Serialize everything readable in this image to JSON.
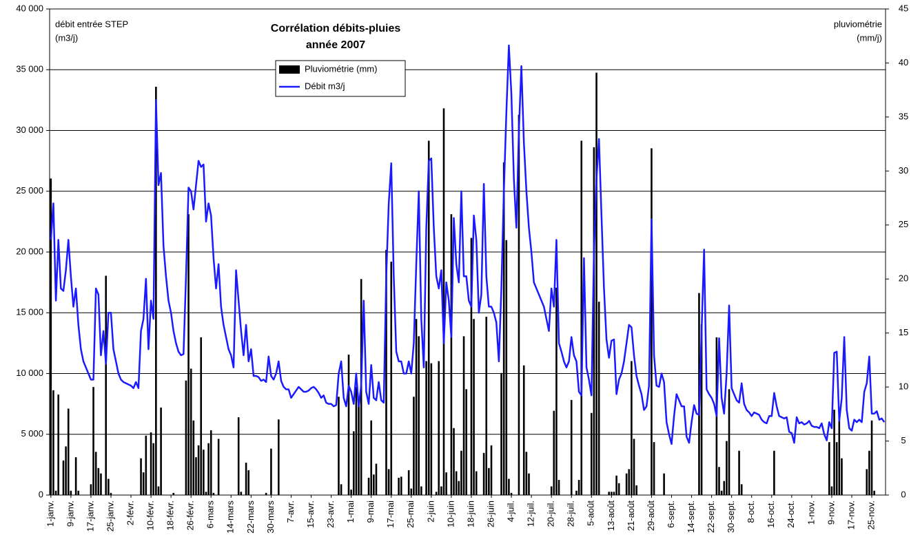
{
  "chart_data": {
    "type": "bar_line",
    "title": [
      "Corrélation débits-pluies",
      "année 2007"
    ],
    "ylabel": [
      "débit entrée STEP",
      "(m3/j)"
    ],
    "y2label": [
      "pluviométrie",
      "(mm/j)"
    ],
    "categories": [
      "1-janv.",
      null,
      null,
      null,
      null,
      null,
      null,
      null,
      "9-janv.",
      null,
      null,
      null,
      null,
      null,
      null,
      null,
      "17-janv.",
      null,
      null,
      null,
      null,
      null,
      null,
      null,
      "25-janv.",
      null,
      null,
      null,
      null,
      null,
      null,
      null,
      "2-févr.",
      null,
      null,
      null,
      null,
      null,
      null,
      null,
      "10-févr.",
      null,
      null,
      null,
      null,
      null,
      null,
      null,
      "18-févr.",
      null,
      null,
      null,
      null,
      null,
      null,
      null,
      "26-févr.",
      null,
      null,
      null,
      null,
      null,
      null,
      null,
      "6-mars",
      null,
      null,
      null,
      null,
      null,
      null,
      null,
      "14-mars",
      null,
      null,
      null,
      null,
      null,
      null,
      null,
      "22-mars",
      null,
      null,
      null,
      null,
      null,
      null,
      null,
      "30-mars",
      null,
      null,
      null,
      null,
      null,
      null,
      null,
      "7-avr.",
      null,
      null,
      null,
      null,
      null,
      null,
      null,
      "15-avr.",
      null,
      null,
      null,
      null,
      null,
      null,
      null,
      "23-avr.",
      null,
      null,
      null,
      null,
      null,
      null,
      null,
      "1-mai",
      null,
      null,
      null,
      null,
      null,
      null,
      null,
      "9-mai",
      null,
      null,
      null,
      null,
      null,
      null,
      null,
      "17-mai",
      null,
      null,
      null,
      null,
      null,
      null,
      null,
      "25-mai",
      null,
      null,
      null,
      null,
      null,
      null,
      null,
      "2-juin",
      null,
      null,
      null,
      null,
      null,
      null,
      null,
      "10-juin",
      null,
      null,
      null,
      null,
      null,
      null,
      null,
      "18-juin",
      null,
      null,
      null,
      null,
      null,
      null,
      null,
      "26-juin",
      null,
      null,
      null,
      null,
      null,
      null,
      null,
      "4-juil.",
      null,
      null,
      null,
      null,
      null,
      null,
      null,
      "12-juil.",
      null,
      null,
      null,
      null,
      null,
      null,
      null,
      "20-juil.",
      null,
      null,
      null,
      null,
      null,
      null,
      null,
      "28-juil.",
      null,
      null,
      null,
      null,
      null,
      null,
      null,
      "5-août",
      null,
      null,
      null,
      null,
      null,
      null,
      null,
      "13-août",
      null,
      null,
      null,
      null,
      null,
      null,
      null,
      "21-août",
      null,
      null,
      null,
      null,
      null,
      null,
      null,
      "29-août",
      null,
      null,
      null,
      null,
      null,
      null,
      null,
      "6-sept.",
      null,
      null,
      null,
      null,
      null,
      null,
      null,
      "14-sept.",
      null,
      null,
      null,
      null,
      null,
      null,
      null,
      "22-sept.",
      null,
      null,
      null,
      null,
      null,
      null,
      null,
      "30-sept.",
      null,
      null,
      null,
      null,
      null,
      null,
      null,
      "8-oct.",
      null,
      null,
      null,
      null,
      null,
      null,
      null,
      "16-oct.",
      null,
      null,
      null,
      null,
      null,
      null,
      null,
      "24-oct.",
      null,
      null,
      null,
      null,
      null,
      null,
      null,
      "1-nov.",
      null,
      null,
      null,
      null,
      null,
      null,
      null,
      "9-nov.",
      null,
      null,
      null,
      null,
      null,
      null,
      null,
      "17-nov.",
      null,
      null,
      null,
      null,
      null,
      null,
      null,
      "25-nov.",
      null,
      null,
      null,
      null,
      null
    ],
    "series": [
      {
        "name": "Pluviométrie (mm)",
        "type": "bar",
        "axis": "y2",
        "color": "#000000",
        "values": [
          29.3,
          9.7,
          0.4,
          9.3,
          0,
          3.2,
          4.5,
          8,
          0.4,
          0,
          3.5,
          0.4,
          0,
          0,
          0,
          0,
          1,
          10,
          4,
          2.5,
          2,
          0,
          20.3,
          1.5,
          0.2,
          0,
          0,
          0,
          0,
          0,
          0,
          0,
          0,
          0,
          0,
          0,
          3.4,
          2.1,
          5.5,
          0,
          5.8,
          4.8,
          37.8,
          0.8,
          8.1,
          0,
          0,
          0,
          0,
          0.2,
          0,
          0,
          0,
          0,
          10.6,
          26,
          11.7,
          6.9,
          3.5,
          4.6,
          14.6,
          4.2,
          0.3,
          4.8,
          6,
          0.2,
          0,
          5.2,
          0,
          0,
          0,
          0,
          0,
          0,
          0,
          7.2,
          0.3,
          0,
          3,
          2.3,
          0,
          0,
          0,
          0,
          0,
          0,
          0.2,
          0,
          4.3,
          0,
          0,
          7,
          0,
          0,
          0,
          0,
          0,
          0,
          0,
          0,
          0,
          0,
          0,
          0,
          0,
          0,
          0,
          0,
          0,
          0,
          0,
          0,
          0,
          0,
          0,
          9.1,
          1,
          0,
          0,
          13,
          0.5,
          5.9,
          10,
          8.6,
          20,
          0,
          0,
          1.6,
          6.9,
          1.9,
          2.9,
          0,
          0,
          0,
          22.7,
          2.4,
          21.6,
          0,
          0,
          1.6,
          1.7,
          0,
          0,
          2.3,
          0.6,
          9.1,
          16.3,
          14.7,
          0.8,
          0,
          12.4,
          32.8,
          12.2,
          0,
          0.3,
          12.4,
          0.8,
          35.8,
          2.1,
          0,
          26,
          6.2,
          2.2,
          1.3,
          4.1,
          14.7,
          9.8,
          0,
          23.8,
          16.3,
          2.2,
          0,
          0,
          3.9,
          16.5,
          2.5,
          4.6,
          0,
          0,
          0,
          11.3,
          30.8,
          23.6,
          1.5,
          0.2,
          0,
          0,
          35.2,
          0,
          12,
          4,
          2,
          0,
          0,
          0,
          0,
          0,
          0,
          0,
          0,
          0.8,
          7.8,
          19.2,
          1.4,
          0,
          0,
          0,
          0,
          8.8,
          0,
          0.4,
          1.4,
          32.8,
          0,
          0,
          0,
          7.6,
          32.2,
          39.1,
          17.9,
          0,
          0,
          0,
          0.3,
          0.3,
          0.3,
          1.8,
          1.1,
          0,
          0,
          2,
          2.4,
          12.4,
          5.2,
          0.9,
          0,
          0,
          0,
          0,
          0,
          32.1,
          4.9,
          0,
          0,
          0,
          2,
          0,
          0,
          0,
          0,
          0,
          0,
          0,
          0,
          0,
          0,
          0,
          0,
          0,
          18.7,
          15.8,
          0,
          0,
          0,
          0,
          0,
          14.6,
          2.6,
          0.4,
          1.3,
          5,
          9.8,
          0,
          0,
          0,
          4.1,
          1,
          0,
          0,
          0,
          0,
          0,
          0,
          0,
          0,
          0,
          0,
          0,
          0,
          4.1,
          0,
          0,
          0,
          0,
          0,
          0,
          0,
          0,
          0,
          0,
          0,
          0,
          0,
          0,
          0,
          0,
          0,
          0,
          0,
          0,
          0,
          4.9,
          0.8,
          7.9,
          4.9,
          6.9,
          3.4,
          0,
          0,
          0,
          0,
          0,
          0,
          0,
          0,
          0,
          2.4,
          4.1,
          6.9,
          0.4,
          0,
          0,
          0,
          0
        ]
      },
      {
        "name": "Débit m3/j",
        "type": "line",
        "color": "#1a1aff",
        "values": [
          21000,
          24000,
          16000,
          21000,
          17000,
          16800,
          18500,
          21000,
          18000,
          15500,
          17000,
          14000,
          12000,
          11000,
          10500,
          10000,
          9500,
          9500,
          17000,
          16500,
          11500,
          13500,
          10800,
          15000,
          15000,
          12000,
          11000,
          10000,
          9500,
          9300,
          9200,
          9100,
          9000,
          8800,
          9300,
          8800,
          13500,
          14500,
          17800,
          12000,
          16000,
          14500,
          32500,
          25500,
          26500,
          20500,
          18000,
          16000,
          15000,
          13500,
          12500,
          11800,
          11500,
          11600,
          18000,
          25300,
          25000,
          23500,
          25500,
          27500,
          27000,
          27200,
          22500,
          24000,
          23000,
          19500,
          17000,
          19000,
          15500,
          14000,
          13000,
          12000,
          11500,
          10500,
          18500,
          16000,
          13500,
          11500,
          14000,
          11000,
          12000,
          9800,
          9800,
          9700,
          9400,
          9500,
          9300,
          11400,
          9800,
          9500,
          10000,
          11000,
          9400,
          8900,
          8700,
          8700,
          8000,
          8300,
          8600,
          8900,
          8700,
          8500,
          8500,
          8600,
          8800,
          8900,
          8700,
          8400,
          8000,
          8200,
          7600,
          7500,
          7500,
          7300,
          7400,
          10000,
          11000,
          8000,
          7300,
          9000,
          8500,
          7500,
          10000,
          7300,
          9000,
          16000,
          8500,
          7500,
          10700,
          8000,
          7800,
          9300,
          7800,
          7600,
          18000,
          24000,
          27300,
          18000,
          11800,
          11000,
          11000,
          10000,
          10000,
          11000,
          10000,
          12500,
          19000,
          25000,
          14500,
          10500,
          22000,
          27500,
          27700,
          22000,
          18000,
          17000,
          18500,
          12500,
          17500,
          16000,
          13000,
          22800,
          19000,
          17500,
          25000,
          18000,
          18000,
          16000,
          15500,
          23000,
          21000,
          15000,
          16500,
          25600,
          18000,
          15500,
          15500,
          15000,
          14200,
          11000,
          17000,
          25000,
          31500,
          37000,
          33000,
          26000,
          22000,
          30000,
          35300,
          29000,
          25000,
          22000,
          20000,
          17500,
          17000,
          16500,
          16000,
          15500,
          14500,
          13500,
          17000,
          15500,
          21000,
          12500,
          11800,
          11000,
          10500,
          11000,
          13000,
          11500,
          11000,
          8500,
          8200,
          19500,
          10500,
          9500,
          8200,
          20000,
          26000,
          29300,
          23000,
          17000,
          12800,
          11300,
          12700,
          12800,
          8300,
          9500,
          10000,
          11000,
          12500,
          14000,
          13800,
          11500,
          9800,
          9000,
          8300,
          7000,
          7300,
          9000,
          22700,
          11500,
          9000,
          8900,
          10000,
          9300,
          6000,
          5000,
          4200,
          6500,
          8300,
          7800,
          7300,
          7300,
          4800,
          4300,
          6000,
          7400,
          6700,
          6600,
          13500,
          20200,
          8700,
          8300,
          8000,
          7500,
          6500,
          12900,
          8000,
          6700,
          10000,
          15600,
          8800,
          8300,
          7800,
          7600,
          9200,
          7500,
          7000,
          6800,
          6500,
          6800,
          6700,
          6600,
          6200,
          6000,
          5900,
          6500,
          6500,
          8400,
          7300,
          6500,
          6400,
          6300,
          6400,
          5200,
          5100,
          4300,
          6400,
          5900,
          6000,
          5800,
          5900,
          6100,
          5700,
          5600,
          5600,
          5500,
          5900,
          5000,
          4500,
          6000,
          5500,
          11700,
          11800,
          6100,
          8000,
          13000,
          7000,
          5500,
          5300,
          6200,
          6000,
          6200,
          6000,
          8500,
          9200,
          11400,
          6700,
          6700,
          6900,
          6200,
          6300,
          6000
        ]
      }
    ],
    "ylim": [
      0,
      40000
    ],
    "yticks": [
      0,
      {
        "value": 5000,
        "label": "5 000"
      },
      {
        "value": 10000,
        "label": "10 000"
      },
      {
        "value": 15000,
        "label": "15 000"
      },
      {
        "value": 20000,
        "label": "20 000"
      },
      {
        "value": 25000,
        "label": "25 000"
      },
      {
        "value": 30000,
        "label": "30 000"
      },
      {
        "value": 35000,
        "label": "35 000"
      },
      {
        "value": 40000,
        "label": "40 000"
      }
    ],
    "y2lim": [
      0,
      45
    ],
    "y2ticks": [
      0,
      5,
      10,
      15,
      20,
      25,
      30,
      35,
      40,
      45
    ],
    "grid": true
  }
}
